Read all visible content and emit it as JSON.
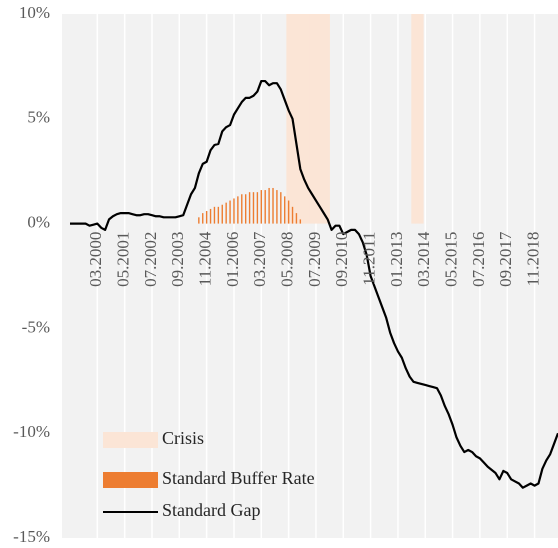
{
  "chart_data": {
    "type": "combo",
    "categories": [
      null,
      null,
      null,
      null,
      null,
      null,
      null,
      "03.2000",
      null,
      null,
      null,
      null,
      null,
      null,
      "05.2001",
      null,
      null,
      null,
      null,
      null,
      null,
      "07.2002",
      null,
      null,
      null,
      null,
      null,
      null,
      "09.2003",
      null,
      null,
      null,
      null,
      null,
      null,
      "11.2004",
      null,
      null,
      null,
      null,
      null,
      null,
      "01.2006",
      null,
      null,
      null,
      null,
      null,
      null,
      "03.2007",
      null,
      null,
      null,
      null,
      null,
      null,
      "05.2008",
      null,
      null,
      null,
      null,
      null,
      null,
      "07.2009",
      null,
      null,
      null,
      null,
      null,
      null,
      "09.2010",
      null,
      null,
      null,
      null,
      null,
      null,
      "11.2011",
      null,
      null,
      null,
      null,
      null,
      null,
      "01.2013",
      null,
      null,
      null,
      null,
      null,
      null,
      "03.2014",
      null,
      null,
      null,
      null,
      null,
      null,
      "05.2015",
      null,
      null,
      null,
      null,
      null,
      null,
      "07.2016",
      null,
      null,
      null,
      null,
      null,
      null,
      "09.2017",
      null,
      null,
      null,
      null,
      null,
      null,
      "11.2018",
      null,
      null,
      null,
      null,
      null,
      null
    ],
    "series": [
      {
        "name": "Crisis",
        "type": "bar",
        "color": "#fbe5d6",
        "values": [
          null,
          null,
          null,
          null,
          null,
          null,
          null,
          null,
          null,
          null,
          null,
          null,
          null,
          null,
          null,
          null,
          null,
          null,
          null,
          null,
          null,
          null,
          null,
          null,
          null,
          null,
          null,
          null,
          null,
          null,
          null,
          null,
          null,
          null,
          null,
          null,
          null,
          null,
          null,
          null,
          null,
          null,
          null,
          null,
          null,
          null,
          null,
          null,
          null,
          null,
          null,
          null,
          null,
          null,
          null,
          null,
          10,
          10,
          10,
          10,
          10,
          10,
          10,
          10,
          10,
          10,
          10,
          null,
          null,
          null,
          null,
          null,
          null,
          null,
          null,
          null,
          null,
          null,
          null,
          null,
          null,
          null,
          null,
          null,
          null,
          null,
          null,
          null,
          10,
          10,
          10,
          null,
          null,
          null,
          null,
          null,
          null,
          null,
          null,
          null,
          null,
          null,
          null,
          null,
          null,
          null,
          null,
          null,
          null,
          null,
          null,
          null,
          null,
          null,
          null,
          null,
          null,
          null,
          null,
          null,
          null,
          null,
          null,
          null,
          null,
          null
        ]
      },
      {
        "name": "Standard Buffer Rate",
        "type": "bar",
        "color": "#ed7d31",
        "values": [
          null,
          null,
          null,
          null,
          null,
          null,
          null,
          null,
          null,
          null,
          null,
          null,
          null,
          null,
          null,
          null,
          null,
          null,
          null,
          null,
          null,
          null,
          null,
          null,
          null,
          null,
          null,
          null,
          null,
          null,
          null,
          null,
          null,
          0.3,
          0.5,
          0.6,
          0.7,
          0.8,
          0.8,
          0.9,
          1,
          1.1,
          1.2,
          1.3,
          1.4,
          1.4,
          1.5,
          1.5,
          1.5,
          1.6,
          1.6,
          1.7,
          1.7,
          1.6,
          1.5,
          1.3,
          1.1,
          0.8,
          0.5,
          0.2,
          null,
          null,
          null,
          null,
          null,
          null,
          null,
          null,
          null,
          null,
          null,
          null,
          null,
          null,
          null,
          null,
          null,
          null,
          null,
          null,
          null,
          null,
          null,
          null,
          null,
          null,
          null,
          null,
          null,
          null,
          null,
          null,
          null,
          null,
          null,
          null,
          null,
          null,
          null,
          null,
          null,
          null,
          null,
          null,
          null,
          null,
          null,
          null,
          null,
          null,
          null,
          null,
          null,
          null,
          null,
          null,
          null,
          null,
          null,
          null,
          null,
          null,
          null,
          null,
          null,
          null
        ]
      },
      {
        "name": "Standard Gap",
        "type": "line",
        "color": "#000000",
        "values": [
          0,
          0,
          0,
          0,
          0,
          -0.1,
          -0.05,
          0,
          -0.2,
          -0.3,
          0.2,
          0.35,
          0.45,
          0.5,
          0.5,
          0.5,
          0.45,
          0.4,
          0.4,
          0.45,
          0.45,
          0.4,
          0.35,
          0.35,
          0.3,
          0.3,
          0.3,
          0.3,
          0.35,
          0.4,
          0.9,
          1.4,
          1.7,
          2.4,
          2.85,
          2.95,
          3.5,
          3.75,
          3.8,
          4.4,
          4.6,
          4.7,
          5.2,
          5.5,
          5.8,
          6,
          6,
          6.1,
          6.3,
          6.8,
          6.8,
          6.6,
          6.7,
          6.7,
          6.4,
          5.9,
          5.4,
          5,
          3.8,
          2.6,
          2.1,
          1.7,
          1.4,
          1.1,
          0.8,
          0.5,
          0.2,
          -0.3,
          -0.1,
          -0.1,
          -0.5,
          -0.4,
          -0.3,
          -0.3,
          -0.5,
          -0.9,
          -1.5,
          -2.5,
          -3,
          -3.5,
          -4,
          -4.5,
          -5.2,
          -5.7,
          -6.1,
          -6.4,
          -6.9,
          -7.3,
          -7.55,
          -7.6,
          -7.65,
          -7.7,
          -7.75,
          -7.8,
          -7.85,
          -8.2,
          -8.7,
          -9.1,
          -9.6,
          -10.2,
          -10.6,
          -10.9,
          -10.8,
          -10.9,
          -11.1,
          -11.2,
          -11.4,
          -11.6,
          -11.75,
          -11.9,
          -12.2,
          -11.8,
          -11.9,
          -12.2,
          -12.3,
          -12.4,
          -12.6,
          -12.5,
          -12.4,
          -12.5,
          -12.4,
          -11.7,
          -11.3,
          -11,
          -10.5,
          -10
        ]
      }
    ],
    "ylim": [
      -15,
      10
    ],
    "yticks": [
      {
        "value": -15,
        "label": "-15%"
      },
      {
        "value": -10,
        "label": "-10%"
      },
      {
        "value": -5,
        "label": "-5%"
      },
      {
        "value": 0,
        "label": "0%"
      },
      {
        "value": 5,
        "label": "5%"
      },
      {
        "value": 10,
        "label": "10%"
      }
    ],
    "grid": true,
    "legend": "lower-left"
  }
}
